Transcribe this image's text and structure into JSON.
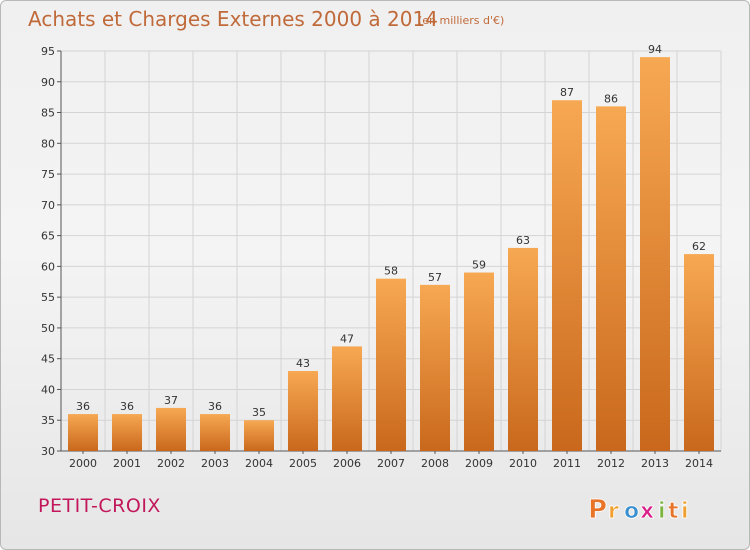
{
  "header": {
    "title": "Achats et Charges Externes 2000 à 2014",
    "subtitle": "(en milliers d'€)"
  },
  "place": "PETIT-CROIX",
  "logo": {
    "letters": [
      "P",
      "r",
      "o",
      "x",
      "i",
      "t",
      "i"
    ],
    "colors": [
      "#e8742a",
      "#f0a030",
      "#3a8fd0",
      "#d8228a",
      "#7cb342",
      "#e8742a",
      "#f0a030"
    ]
  },
  "colors": {
    "bar_light": "#f7a852",
    "bar_dark": "#c9681c",
    "grid": "#d4d4d4",
    "title": "#c06a3a"
  },
  "chart_data": {
    "type": "bar",
    "title": "Achats et Charges Externes 2000 à 2014",
    "subtitle": "(en milliers d'€)",
    "categories": [
      "2000",
      "2001",
      "2002",
      "2003",
      "2004",
      "2005",
      "2006",
      "2007",
      "2008",
      "2009",
      "2010",
      "2011",
      "2012",
      "2013",
      "2014"
    ],
    "values": [
      36,
      36,
      37,
      36,
      35,
      43,
      47,
      58,
      57,
      59,
      63,
      87,
      86,
      94,
      62
    ],
    "ylim": [
      30,
      95
    ],
    "yticks": [
      30,
      35,
      40,
      45,
      50,
      55,
      60,
      65,
      70,
      75,
      80,
      85,
      90,
      95
    ],
    "grid": true,
    "data_labels": true
  }
}
